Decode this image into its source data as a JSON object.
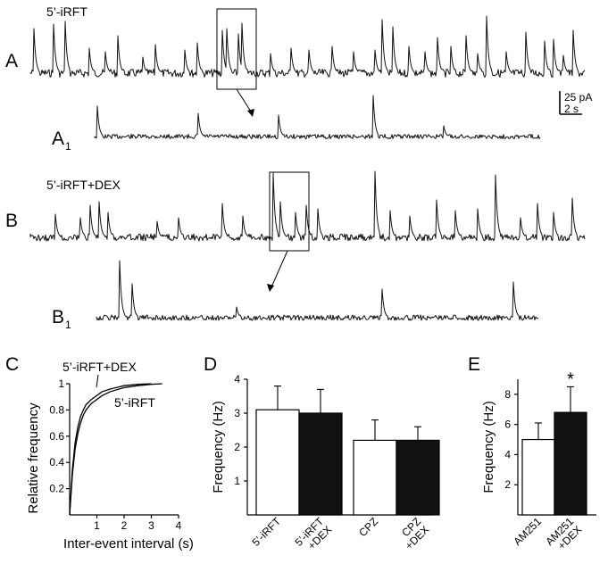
{
  "panel_letters": {
    "A": "A",
    "A1": "A",
    "B": "B",
    "B1": "B",
    "C": "C",
    "D": "D",
    "E": "E",
    "sub": "1"
  },
  "traces": {
    "A_label": "5’-iRFT",
    "B_label": "5’-iRFT+DEX"
  },
  "scale_bar": {
    "amplitude": "25 pA",
    "time": "2 s"
  },
  "colors": {
    "ink": "#000000",
    "bar_open": "#ffffff",
    "bar_filled": "#111111"
  },
  "chart_data": [
    {
      "panel": "C",
      "type": "line",
      "xlabel": "Inter-event interval (s)",
      "ylabel": "Relative frequency",
      "xlim": [
        0,
        4
      ],
      "ylim": [
        0,
        1
      ],
      "xticks": [
        "1",
        "2",
        "3",
        "4"
      ],
      "yticks": [
        "0.2",
        "0.4",
        "0.6",
        "0.8",
        "1"
      ],
      "series": [
        {
          "name": "5’-iRFT",
          "x": [
            0,
            0.1,
            0.2,
            0.3,
            0.4,
            0.5,
            0.6,
            0.8,
            1.0,
            1.2,
            1.5,
            2.0,
            2.5,
            3.0,
            3.4
          ],
          "y": [
            0,
            0.3,
            0.5,
            0.62,
            0.7,
            0.76,
            0.8,
            0.85,
            0.88,
            0.91,
            0.94,
            0.97,
            0.985,
            0.995,
            1.0
          ]
        },
        {
          "name": "5’-iRFT+DEX",
          "x": [
            0,
            0.1,
            0.2,
            0.3,
            0.4,
            0.5,
            0.6,
            0.8,
            1.0,
            1.2,
            1.5,
            2.0,
            2.5,
            3.0
          ],
          "y": [
            0,
            0.34,
            0.55,
            0.67,
            0.75,
            0.8,
            0.84,
            0.88,
            0.91,
            0.94,
            0.96,
            0.985,
            0.995,
            1.0
          ]
        }
      ]
    },
    {
      "panel": "D",
      "type": "bar",
      "ylabel": "Frequency (Hz)",
      "ylim": [
        0,
        4
      ],
      "yticks": [
        "1",
        "2",
        "3",
        "4"
      ],
      "categories": [
        {
          "line1": "5’-iRFT",
          "line2": ""
        },
        {
          "line1": "5’-iRFT",
          "line2": "+DEX"
        },
        {
          "line1": "CPZ",
          "line2": ""
        },
        {
          "line1": "CPZ",
          "line2": "+DEX"
        }
      ],
      "values": [
        3.1,
        3.0,
        2.2,
        2.2
      ],
      "errors": [
        0.7,
        0.7,
        0.6,
        0.4
      ],
      "fill": [
        "open",
        "filled",
        "open",
        "filled"
      ]
    },
    {
      "panel": "E",
      "type": "bar",
      "ylabel": "Frequency (Hz)",
      "ylim": [
        0,
        9
      ],
      "yticks": [
        "2",
        "4",
        "6",
        "8"
      ],
      "categories": [
        {
          "line1": "AM251",
          "line2": ""
        },
        {
          "line1": "AM251",
          "line2": "+DEX"
        }
      ],
      "values": [
        5.0,
        6.8
      ],
      "errors": [
        1.1,
        1.7
      ],
      "fill": [
        "open",
        "filled"
      ],
      "annotations": [
        "",
        "*"
      ]
    }
  ]
}
